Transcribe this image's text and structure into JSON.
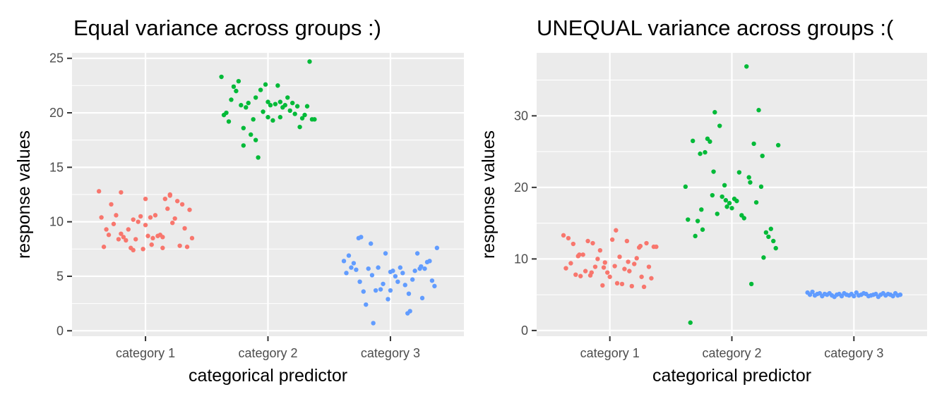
{
  "chart_data": [
    {
      "type": "scatter",
      "title": "Equal variance across groups :)",
      "xlabel": "categorical predictor",
      "ylabel": "response values",
      "categories": [
        "category 1",
        "category 2",
        "category 3"
      ],
      "ylim": [
        -0.5,
        25.5
      ],
      "yticks": [
        0,
        5,
        10,
        15,
        20,
        25
      ],
      "grid": true,
      "legend": "none",
      "series": [
        {
          "category": "category 1",
          "color": "#F8766D",
          "x": [
            0.62,
            0.64,
            0.66,
            0.7,
            0.72,
            0.74,
            0.76,
            0.78,
            0.8,
            0.82,
            0.84,
            0.86,
            0.88,
            0.9,
            0.92,
            0.94,
            0.96,
            0.98,
            1.0,
            1.02,
            1.04,
            1.06,
            1.08,
            1.1,
            1.12,
            1.14,
            1.16,
            1.18,
            1.2,
            1.22,
            1.24,
            1.26,
            1.28,
            1.3,
            1.32,
            1.34,
            1.36,
            1.38,
            0.68,
            0.9,
            1.0,
            1.14,
            1.2,
            0.8,
            1.05
          ],
          "y": [
            12.8,
            10.4,
            7.7,
            8.8,
            11.6,
            9.8,
            10.6,
            8.4,
            12.7,
            8.6,
            8.3,
            9.3,
            7.6,
            7.4,
            8.4,
            10.0,
            10.5,
            7.5,
            12.1,
            8.7,
            10.4,
            8.5,
            10.6,
            8.7,
            8.8,
            7.6,
            12.1,
            11.2,
            12.5,
            9.9,
            10.3,
            11.9,
            7.8,
            11.6,
            9.4,
            7.7,
            11.1,
            8.5,
            9.3,
            10.2,
            9.7,
            8.6,
            12.4,
            8.9,
            7.9
          ]
        },
        {
          "category": "category 2",
          "color": "#00BA38",
          "x": [
            1.62,
            1.64,
            1.66,
            1.68,
            1.7,
            1.72,
            1.74,
            1.76,
            1.78,
            1.8,
            1.82,
            1.84,
            1.86,
            1.88,
            1.9,
            1.92,
            1.94,
            1.96,
            1.98,
            2.0,
            2.02,
            2.04,
            2.06,
            2.08,
            2.1,
            2.12,
            2.14,
            2.16,
            2.18,
            2.2,
            2.22,
            2.24,
            2.26,
            2.28,
            2.3,
            2.32,
            2.34,
            2.36,
            2.38,
            1.8,
            1.9,
            2.0,
            2.1
          ],
          "y": [
            23.3,
            19.8,
            20.0,
            19.2,
            21.2,
            22.4,
            22.0,
            22.9,
            20.7,
            17.0,
            20.5,
            20.9,
            18.0,
            19.4,
            21.4,
            15.9,
            22.1,
            20.1,
            22.6,
            21.0,
            20.7,
            19.3,
            20.8,
            22.5,
            19.6,
            20.5,
            20.7,
            21.4,
            20.2,
            20.9,
            19.9,
            20.6,
            18.7,
            19.5,
            19.8,
            20.6,
            24.7,
            19.4,
            19.4,
            18.6,
            17.5,
            19.6,
            21.0
          ]
        },
        {
          "category": "category 3",
          "color": "#619CFF",
          "x": [
            2.62,
            2.64,
            2.66,
            2.68,
            2.7,
            2.72,
            2.74,
            2.76,
            2.78,
            2.8,
            2.82,
            2.84,
            2.86,
            2.88,
            2.9,
            2.92,
            2.94,
            2.96,
            2.98,
            3.0,
            3.02,
            3.04,
            3.06,
            3.08,
            3.1,
            3.12,
            3.14,
            3.16,
            3.18,
            3.2,
            3.22,
            3.24,
            3.26,
            3.28,
            3.3,
            3.32,
            3.34,
            3.36,
            3.38,
            2.75,
            2.85,
            3.0,
            3.15,
            3.25
          ],
          "y": [
            6.4,
            5.3,
            6.9,
            5.8,
            6.2,
            5.6,
            8.5,
            8.6,
            3.6,
            2.4,
            5.7,
            8.0,
            0.7,
            3.7,
            5.8,
            3.8,
            4.3,
            7.1,
            2.9,
            5.4,
            5.5,
            5.0,
            4.5,
            5.8,
            5.3,
            4.2,
            1.6,
            1.8,
            4.7,
            5.5,
            7.1,
            5.7,
            3.0,
            5.7,
            6.3,
            6.4,
            4.6,
            4.1,
            7.6,
            4.5,
            5.1,
            3.7,
            3.4,
            5.9
          ]
        }
      ]
    },
    {
      "type": "scatter",
      "title": "UNEQUAL variance across groups :(",
      "xlabel": "categorical predictor",
      "ylabel": "response values",
      "categories": [
        "category 1",
        "category 2",
        "category 3"
      ],
      "ylim": [
        -0.8,
        38.8
      ],
      "yticks": [
        0,
        10,
        20,
        30
      ],
      "grid": true,
      "legend": "none",
      "series": [
        {
          "category": "category 1",
          "color": "#F8766D",
          "x": [
            0.62,
            0.64,
            0.66,
            0.68,
            0.7,
            0.72,
            0.74,
            0.76,
            0.78,
            0.8,
            0.82,
            0.84,
            0.86,
            0.88,
            0.9,
            0.92,
            0.94,
            0.96,
            0.98,
            1.0,
            1.02,
            1.04,
            1.06,
            1.08,
            1.1,
            1.12,
            1.14,
            1.16,
            1.18,
            1.2,
            1.22,
            1.24,
            1.26,
            1.28,
            1.3,
            1.32,
            1.34,
            1.36,
            1.38,
            0.75,
            0.85,
            0.95,
            1.05,
            1.15,
            1.25
          ],
          "y": [
            13.3,
            8.7,
            12.9,
            9.4,
            12.1,
            7.8,
            10.4,
            7.6,
            10.6,
            8.3,
            12.5,
            7.7,
            12.2,
            8.9,
            10.0,
            11.2,
            6.3,
            9.5,
            8.1,
            7.5,
            12.7,
            9.0,
            6.6,
            10.3,
            6.5,
            8.6,
            12.5,
            8.3,
            6.2,
            9.3,
            10.1,
            11.6,
            7.5,
            6.1,
            12.2,
            8.9,
            7.3,
            11.7,
            11.7,
            10.6,
            8.1,
            8.8,
            14.0,
            9.6,
            11.8
          ]
        },
        {
          "category": "category 2",
          "color": "#00BA38",
          "x": [
            1.62,
            1.64,
            1.66,
            1.68,
            1.7,
            1.72,
            1.74,
            1.76,
            1.78,
            1.8,
            1.82,
            1.84,
            1.86,
            1.88,
            1.9,
            1.92,
            1.94,
            1.96,
            1.98,
            2.0,
            2.02,
            2.04,
            2.06,
            2.08,
            2.1,
            2.12,
            2.14,
            2.16,
            2.18,
            2.2,
            2.22,
            2.24,
            2.26,
            2.28,
            2.3,
            2.32,
            2.34,
            2.36,
            2.38,
            1.75,
            1.85,
            1.95,
            2.15,
            2.25
          ],
          "y": [
            20.1,
            15.5,
            1.1,
            26.5,
            13.2,
            15.3,
            24.7,
            14.1,
            24.9,
            26.8,
            26.4,
            18.9,
            30.5,
            16.3,
            28.6,
            18.7,
            20.3,
            17.3,
            17.8,
            17.1,
            18.4,
            18.1,
            22.1,
            16.1,
            15.7,
            36.9,
            21.4,
            6.5,
            26.1,
            17.9,
            30.8,
            20.1,
            10.2,
            13.7,
            13.1,
            14.2,
            12.5,
            11.5,
            25.9,
            16.9,
            22.2,
            18.2,
            20.7,
            24.4
          ]
        },
        {
          "category": "category 3",
          "color": "#619CFF",
          "x": [
            2.62,
            2.64,
            2.66,
            2.68,
            2.7,
            2.72,
            2.74,
            2.76,
            2.78,
            2.8,
            2.82,
            2.84,
            2.86,
            2.88,
            2.9,
            2.92,
            2.94,
            2.96,
            2.98,
            3.0,
            3.02,
            3.04,
            3.06,
            3.08,
            3.1,
            3.12,
            3.14,
            3.16,
            3.18,
            3.2,
            3.22,
            3.24,
            3.26,
            3.28,
            3.3,
            3.32,
            3.34,
            3.36,
            3.38
          ],
          "y": [
            5.3,
            5.0,
            5.4,
            4.9,
            5.1,
            5.2,
            4.8,
            5.1,
            5.0,
            5.2,
            4.9,
            4.7,
            5.0,
            5.1,
            4.8,
            5.2,
            5.0,
            4.9,
            5.1,
            4.8,
            5.3,
            4.9,
            5.0,
            5.2,
            5.1,
            4.8,
            4.9,
            5.0,
            5.1,
            4.7,
            5.0,
            5.2,
            4.9,
            5.1,
            5.0,
            4.8,
            5.2,
            4.9,
            5.0
          ]
        }
      ]
    }
  ]
}
